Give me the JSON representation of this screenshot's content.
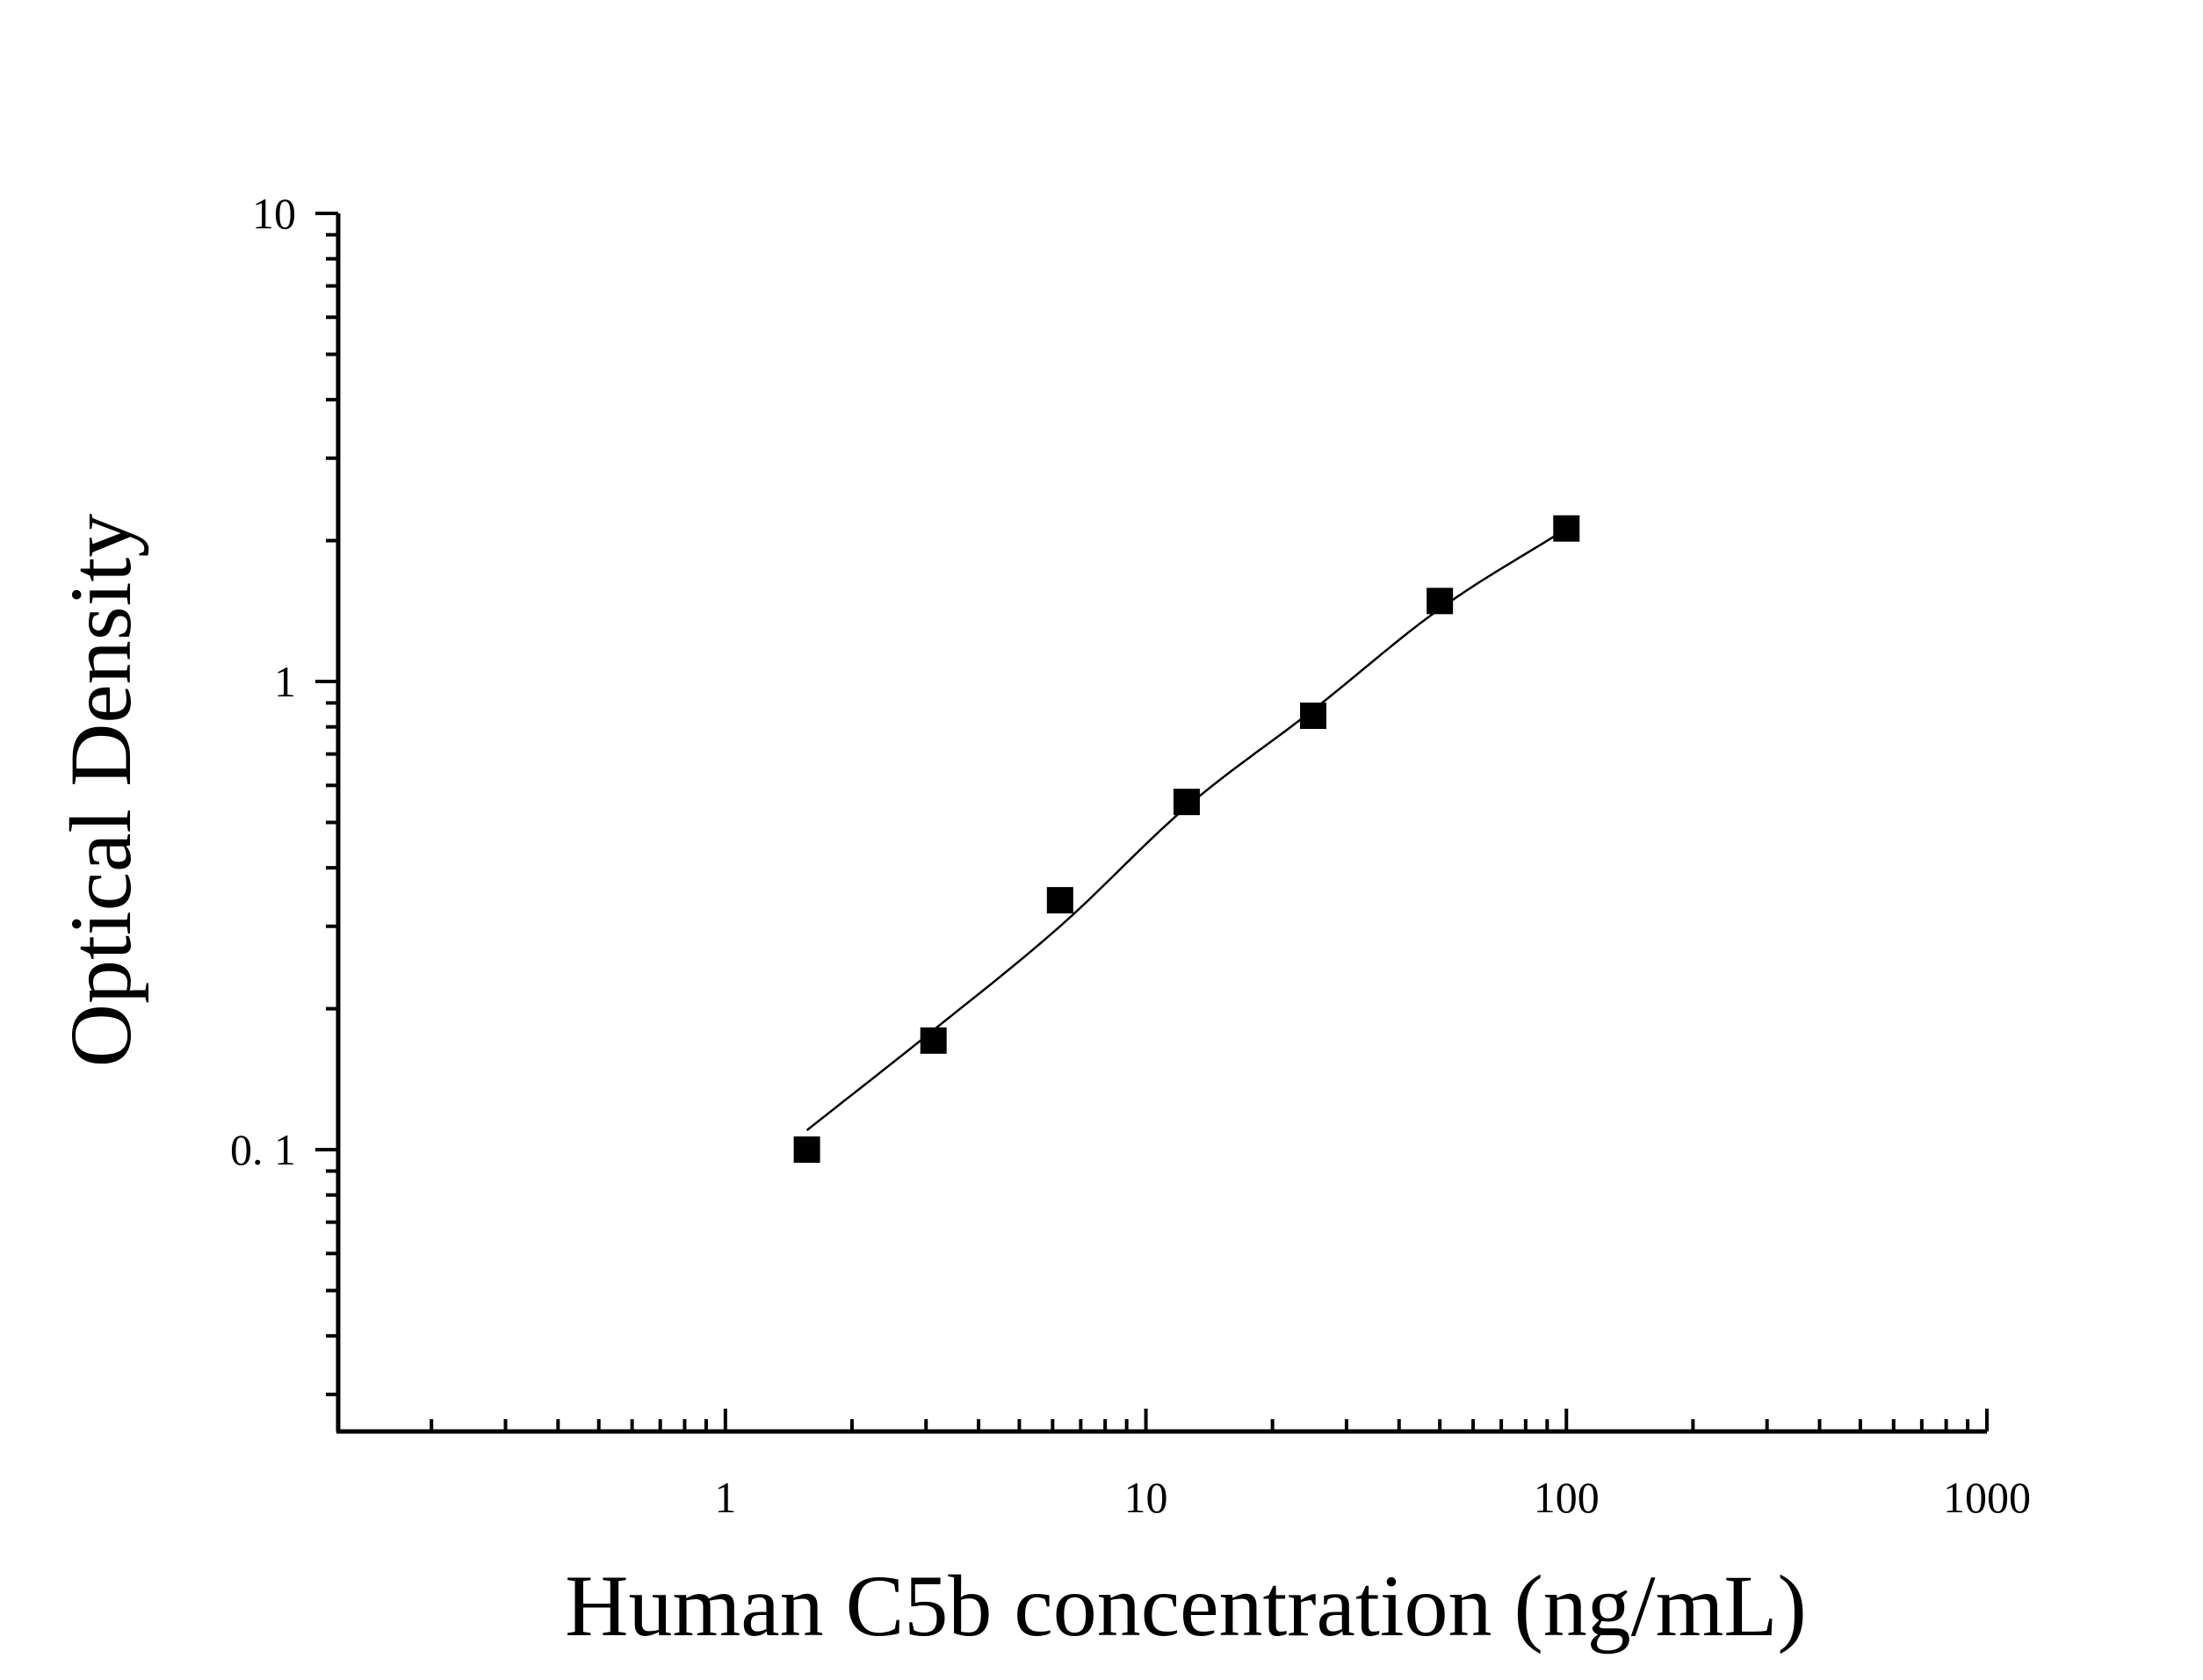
{
  "chart_data": {
    "type": "scatter",
    "title": "",
    "xlabel": "Human C5b concentration (ng/mL)",
    "ylabel": "Optical Density",
    "x_scale": "log",
    "y_scale": "log",
    "xlim": [
      0.12,
      1000
    ],
    "ylim": [
      0.025,
      10
    ],
    "x_ticks": [
      1,
      10,
      100,
      1000
    ],
    "x_tick_labels": [
      "1",
      "10",
      "100",
      "1000"
    ],
    "y_ticks": [
      0.1,
      1,
      10
    ],
    "y_tick_labels": [
      "0. 1",
      "1",
      "10"
    ],
    "grid": false,
    "legend": "none",
    "series": [
      {
        "marker": "square",
        "color": "#000000",
        "x": [
          1.5625,
          3.125,
          6.25,
          12.5,
          25,
          50,
          100
        ],
        "y": [
          0.1,
          0.171,
          0.341,
          0.553,
          0.845,
          1.486,
          2.123
        ]
      }
    ],
    "fit_curve": {
      "color": "#000000",
      "x": [
        1.5625,
        3.125,
        6.25,
        12.5,
        25,
        50,
        100
      ],
      "y": [
        0.11,
        0.18,
        0.3,
        0.54,
        0.87,
        1.43,
        2.12
      ]
    }
  }
}
